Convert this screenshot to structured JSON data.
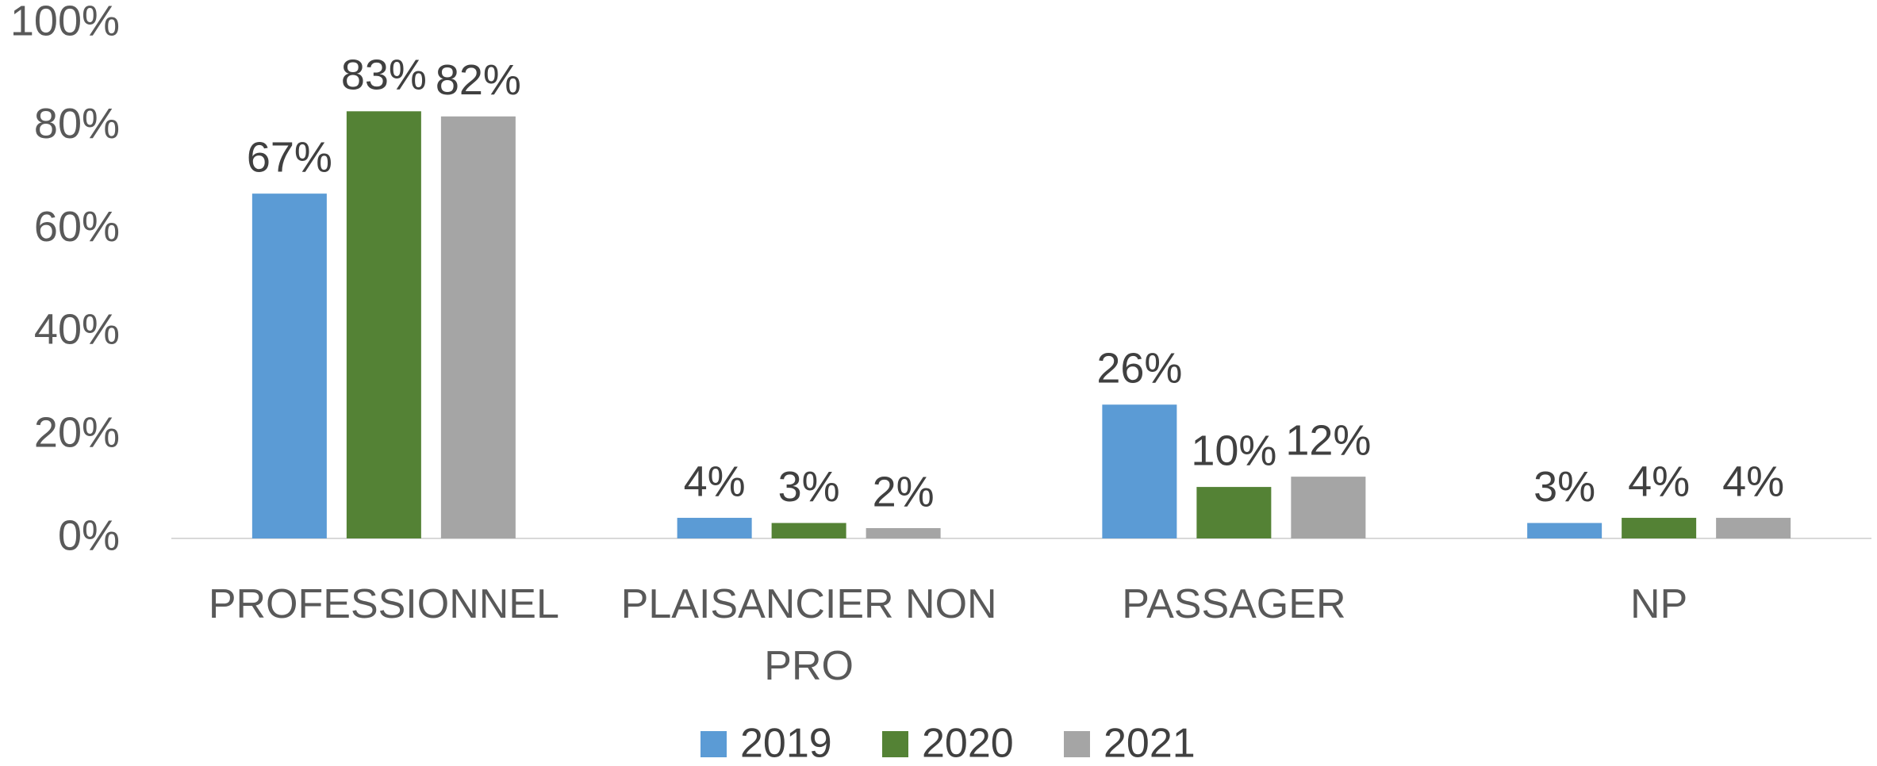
{
  "chart_data": {
    "type": "bar",
    "categories": [
      "PROFESSIONNEL",
      "PLAISANCIER NON PRO",
      "PASSAGER",
      "NP"
    ],
    "series": [
      {
        "name": "2019",
        "color": "#5b9bd5",
        "values": [
          67,
          4,
          26,
          3
        ],
        "value_labels": [
          "67%",
          "4%",
          "26%",
          "3%"
        ]
      },
      {
        "name": "2020",
        "color": "#548235",
        "values": [
          83,
          3,
          10,
          4
        ],
        "value_labels": [
          "83%",
          "3%",
          "10%",
          "4%"
        ]
      },
      {
        "name": "2021",
        "color": "#a5a5a5",
        "values": [
          82,
          2,
          12,
          4
        ],
        "value_labels": [
          "82%",
          "2%",
          "12%",
          "4%"
        ]
      }
    ],
    "ylim": [
      0,
      100
    ],
    "yticks": [
      {
        "value": 0,
        "label": "0%"
      },
      {
        "value": 20,
        "label": "20%"
      },
      {
        "value": 40,
        "label": "40%"
      },
      {
        "value": 60,
        "label": "60%"
      },
      {
        "value": 80,
        "label": "80%"
      },
      {
        "value": 100,
        "label": "100%"
      }
    ],
    "grid": false,
    "legend": "bottom"
  }
}
